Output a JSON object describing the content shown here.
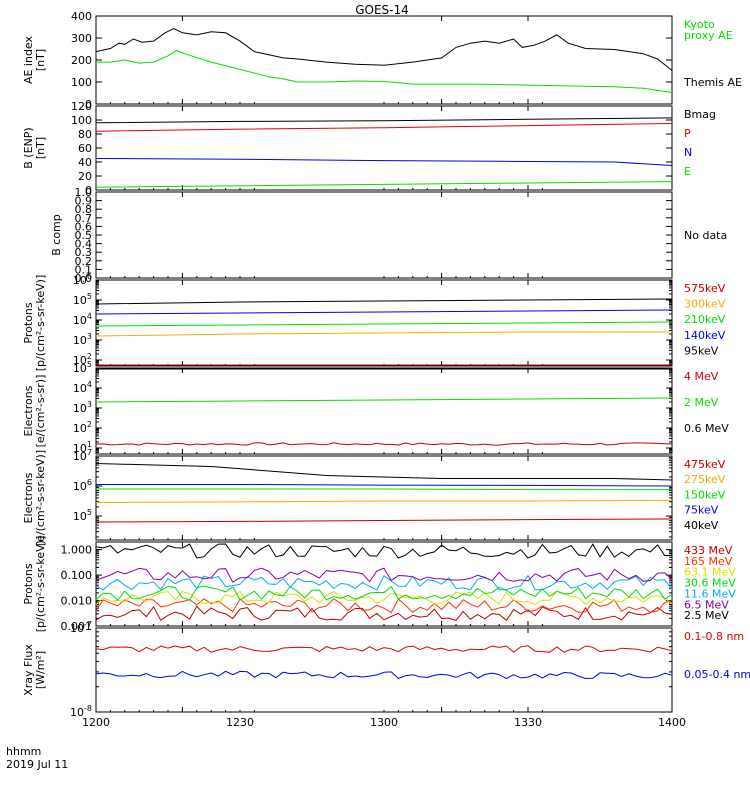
{
  "title": "GOES-14",
  "footer": {
    "time_label": "hhmm",
    "date_label": "2019 Jul 11"
  },
  "x_axis": {
    "range": [
      1200,
      1400
    ],
    "ticks": [
      "1200",
      "1230",
      "1300",
      "1330",
      "1400"
    ]
  },
  "chart_data": [
    {
      "type": "line",
      "ylabel": [
        "AE index",
        "[nT]"
      ],
      "ylim": [
        0,
        420
      ],
      "yticks": [
        "0",
        "100",
        "200",
        "300",
        "400"
      ],
      "series": [
        {
          "name": "Kyoto proxy AE",
          "color": "#00dd00",
          "legend_lines": [
            "Kyoto",
            "proxy AE"
          ],
          "points": [
            [
              1200,
              200
            ],
            [
              1205,
              200
            ],
            [
              1210,
              210
            ],
            [
              1215,
              195
            ],
            [
              1220,
              200
            ],
            [
              1225,
              230
            ],
            [
              1228,
              255
            ],
            [
              1232,
              235
            ],
            [
              1240,
              200
            ],
            [
              1250,
              165
            ],
            [
              1260,
              130
            ],
            [
              1265,
              120
            ],
            [
              1270,
              105
            ],
            [
              1280,
              105
            ],
            [
              1290,
              110
            ],
            [
              1300,
              108
            ],
            [
              1310,
              95
            ],
            [
              1320,
              95
            ],
            [
              1330,
              95
            ],
            [
              1340,
              93
            ],
            [
              1350,
              90
            ],
            [
              1360,
              88
            ],
            [
              1370,
              85
            ],
            [
              1380,
              82
            ],
            [
              1390,
              75
            ],
            [
              1400,
              55
            ]
          ]
        },
        {
          "name": "Themis AE",
          "color": "#000000",
          "legend_lines": [
            "Themis AE"
          ],
          "points": [
            [
              1200,
              250
            ],
            [
              1205,
              265
            ],
            [
              1208,
              290
            ],
            [
              1210,
              285
            ],
            [
              1213,
              310
            ],
            [
              1216,
              295
            ],
            [
              1220,
              300
            ],
            [
              1224,
              340
            ],
            [
              1227,
              360
            ],
            [
              1230,
              340
            ],
            [
              1235,
              330
            ],
            [
              1240,
              345
            ],
            [
              1245,
              340
            ],
            [
              1250,
              300
            ],
            [
              1255,
              250
            ],
            [
              1260,
              235
            ],
            [
              1265,
              220
            ],
            [
              1270,
              215
            ],
            [
              1280,
              200
            ],
            [
              1290,
              190
            ],
            [
              1300,
              185
            ],
            [
              1310,
              200
            ],
            [
              1320,
              220
            ],
            [
              1325,
              270
            ],
            [
              1330,
              290
            ],
            [
              1335,
              300
            ],
            [
              1340,
              290
            ],
            [
              1345,
              310
            ],
            [
              1348,
              270
            ],
            [
              1352,
              280
            ],
            [
              1356,
              300
            ],
            [
              1360,
              330
            ],
            [
              1364,
              290
            ],
            [
              1370,
              265
            ],
            [
              1380,
              260
            ],
            [
              1390,
              240
            ],
            [
              1395,
              215
            ],
            [
              1400,
              160
            ]
          ]
        }
      ]
    },
    {
      "type": "line",
      "ylabel": [
        "B (ENP)",
        "[nT]"
      ],
      "ylim": [
        0,
        120
      ],
      "yticks": [
        "0",
        "20",
        "40",
        "60",
        "80",
        "100",
        "120"
      ],
      "series": [
        {
          "name": "Bmag",
          "color": "#000000",
          "points": [
            [
              1200,
              96
            ],
            [
              1250,
              98
            ],
            [
              1300,
              99
            ],
            [
              1350,
              101
            ],
            [
              1400,
              103
            ]
          ]
        },
        {
          "name": "P",
          "color": "#e00000",
          "points": [
            [
              1200,
              84
            ],
            [
              1250,
              87
            ],
            [
              1300,
              89
            ],
            [
              1350,
              92
            ],
            [
              1400,
              95
            ]
          ]
        },
        {
          "name": "N",
          "color": "#0000ee",
          "points": [
            [
              1200,
              45
            ],
            [
              1250,
              44
            ],
            [
              1300,
              42
            ],
            [
              1340,
              41
            ],
            [
              1380,
              40
            ],
            [
              1400,
              35
            ]
          ]
        },
        {
          "name": "E",
          "color": "#00dd00",
          "points": [
            [
              1200,
              4
            ],
            [
              1250,
              6
            ],
            [
              1300,
              8
            ],
            [
              1350,
              10
            ],
            [
              1400,
              12
            ]
          ]
        }
      ]
    },
    {
      "type": "line",
      "ylabel": [
        "B comp"
      ],
      "ylim": [
        0,
        1
      ],
      "yticks": [
        "0.0",
        "0.1",
        "0.2",
        "0.3",
        "0.4",
        "0.5",
        "0.6",
        "0.7",
        "0.8",
        "0.9",
        "1.0"
      ],
      "no_data_label": "No data",
      "series": []
    },
    {
      "type": "line",
      "log": true,
      "ylabel": [
        "Protons",
        "[p/(cm²-s-sr-keV)]"
      ],
      "ylim_exp": [
        1.7,
        6
      ],
      "ytick_exps": [
        2,
        3,
        4,
        5,
        6
      ],
      "series": [
        {
          "name": "575keV",
          "color": "#c00000",
          "points": [
            [
              1200,
              1.5
            ],
            [
              1250,
              1.5
            ],
            [
              1300,
              1.6
            ],
            [
              1350,
              1.65
            ],
            [
              1400,
              1.7
            ]
          ]
        },
        {
          "name": "300keV",
          "color": "#ffaa00",
          "points": [
            [
              1200,
              3.2
            ],
            [
              1250,
              3.3
            ],
            [
              1300,
              3.35
            ],
            [
              1350,
              3.4
            ],
            [
              1400,
              3.4
            ]
          ]
        },
        {
          "name": "210keV",
          "color": "#00dd00",
          "points": [
            [
              1200,
              3.7
            ],
            [
              1250,
              3.75
            ],
            [
              1300,
              3.8
            ],
            [
              1350,
              3.85
            ],
            [
              1400,
              3.9
            ]
          ]
        },
        {
          "name": "140keV",
          "color": "#0000ee",
          "points": [
            [
              1200,
              4.3
            ],
            [
              1250,
              4.35
            ],
            [
              1300,
              4.4
            ],
            [
              1350,
              4.45
            ],
            [
              1400,
              4.5
            ]
          ]
        },
        {
          "name": "95keV",
          "color": "#000000",
          "points": [
            [
              1200,
              4.8
            ],
            [
              1250,
              4.9
            ],
            [
              1300,
              4.95
            ],
            [
              1350,
              5.0
            ],
            [
              1400,
              5.05
            ]
          ]
        }
      ]
    },
    {
      "type": "line",
      "log": true,
      "ylabel": [
        "Electrons",
        "[e/(cm²-s-sr)]"
      ],
      "ylim_exp": [
        0.7,
        5
      ],
      "ytick_exps": [
        1,
        2,
        3,
        4,
        5
      ],
      "series": [
        {
          "name": "4 MeV",
          "color": "#c00000",
          "noisy": true,
          "points": [
            [
              1200,
              1.2
            ],
            [
              1400,
              1.2
            ]
          ]
        },
        {
          "name": "2 MeV",
          "color": "#00dd00",
          "points": [
            [
              1200,
              3.3
            ],
            [
              1250,
              3.35
            ],
            [
              1300,
              3.4
            ],
            [
              1350,
              3.45
            ],
            [
              1400,
              3.5
            ]
          ]
        },
        {
          "name": "0.6 MeV",
          "color": "#000000",
          "points": [
            [
              1200,
              5.0
            ],
            [
              1400,
              5.0
            ]
          ]
        }
      ]
    },
    {
      "type": "line",
      "log": true,
      "ylabel": [
        "Electrons",
        "[e/(cm²-s-sr-keV)]"
      ],
      "ylim_exp": [
        4.2,
        7
      ],
      "ytick_exps": [
        5,
        6,
        7
      ],
      "series": [
        {
          "name": "475keV",
          "color": "#c00000",
          "points": [
            [
              1200,
              4.8
            ],
            [
              1250,
              4.82
            ],
            [
              1300,
              4.85
            ],
            [
              1350,
              4.88
            ],
            [
              1400,
              4.9
            ]
          ]
        },
        {
          "name": "275keV",
          "color": "#ffaa00",
          "points": [
            [
              1200,
              5.45
            ],
            [
              1250,
              5.47
            ],
            [
              1300,
              5.5
            ],
            [
              1350,
              5.5
            ],
            [
              1400,
              5.52
            ]
          ]
        },
        {
          "name": "150keV",
          "color": "#00dd00",
          "points": [
            [
              1200,
              5.9
            ],
            [
              1250,
              5.9
            ],
            [
              1300,
              5.9
            ],
            [
              1350,
              5.88
            ],
            [
              1400,
              5.88
            ]
          ]
        },
        {
          "name": "75keV",
          "color": "#0000ee",
          "points": [
            [
              1200,
              6.05
            ],
            [
              1250,
              6.05
            ],
            [
              1300,
              6.03
            ],
            [
              1350,
              6.02
            ],
            [
              1400,
              6.0
            ]
          ]
        },
        {
          "name": "40keV",
          "color": "#000000",
          "points": [
            [
              1200,
              6.75
            ],
            [
              1220,
              6.7
            ],
            [
              1240,
              6.65
            ],
            [
              1260,
              6.5
            ],
            [
              1280,
              6.35
            ],
            [
              1300,
              6.3
            ],
            [
              1320,
              6.25
            ],
            [
              1340,
              6.25
            ],
            [
              1360,
              6.25
            ],
            [
              1380,
              6.25
            ],
            [
              1400,
              6.2
            ]
          ]
        }
      ]
    },
    {
      "type": "line",
      "log": true,
      "ylabel": [
        "Protons",
        "[p/(cm²-s-sr-keV)]"
      ],
      "ylim_exp": [
        -3,
        0.3
      ],
      "yticks": [
        [
          -3,
          "0.001"
        ],
        [
          -2,
          "0.010"
        ],
        [
          -1,
          "0.100"
        ],
        [
          0,
          "1.000"
        ]
      ],
      "series": [
        {
          "name": "433 MeV",
          "color": "#c00000",
          "noisy": true,
          "points": [
            [
              1200,
              -2.5
            ],
            [
              1400,
              -2.5
            ]
          ]
        },
        {
          "name": "165 MeV",
          "color": "#ff3300",
          "noisy": true,
          "points": [
            [
              1200,
              -2.2
            ],
            [
              1400,
              -2.2
            ]
          ]
        },
        {
          "name": "63.1 MeV",
          "color": "#dddd00",
          "noisy": true,
          "points": [
            [
              1200,
              -1.9
            ],
            [
              1400,
              -1.9
            ]
          ]
        },
        {
          "name": "30.6 MeV",
          "color": "#00dd00",
          "noisy": true,
          "points": [
            [
              1200,
              -1.7
            ],
            [
              1400,
              -1.7
            ]
          ]
        },
        {
          "name": "11.6 MeV",
          "color": "#00aaff",
          "noisy": true,
          "points": [
            [
              1200,
              -1.3
            ],
            [
              1400,
              -1.3
            ]
          ]
        },
        {
          "name": "6.5 MeV",
          "color": "#8800aa",
          "noisy": true,
          "points": [
            [
              1200,
              -1.0
            ],
            [
              1400,
              -1.0
            ]
          ]
        },
        {
          "name": "2.5 MeV",
          "color": "#000000",
          "noisy": true,
          "points": [
            [
              1200,
              -0.05
            ],
            [
              1400,
              -0.05
            ]
          ]
        }
      ]
    },
    {
      "type": "line",
      "log": true,
      "ylabel": [
        "Xray Flux",
        "[W/m²]"
      ],
      "ylim_exp": [
        -8,
        -7
      ],
      "ytick_exps": [
        -8,
        -7
      ],
      "series": [
        {
          "name": "0.1-0.8 nm",
          "color": "#e00000",
          "noisy": true,
          "points": [
            [
              1200,
              -7.25
            ],
            [
              1400,
              -7.25
            ]
          ]
        },
        {
          "name": "0.05-0.4 nm",
          "color": "#0000ee",
          "noisy": true,
          "points": [
            [
              1200,
              -7.55
            ],
            [
              1400,
              -7.57
            ]
          ]
        }
      ]
    }
  ]
}
